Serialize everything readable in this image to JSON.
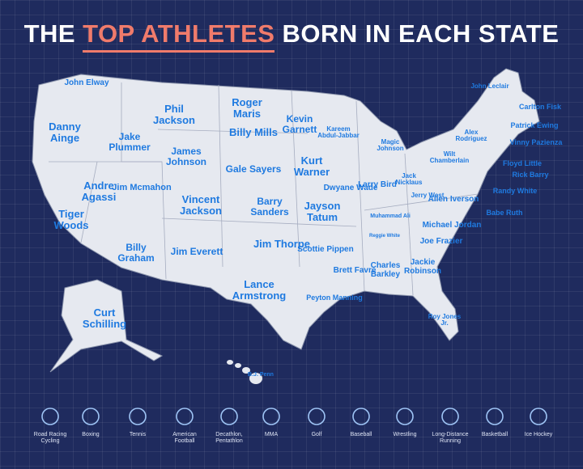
{
  "title": {
    "before": "THE",
    "highlight": "TOP ATHLETES",
    "after": "BORN IN EACH STATE"
  },
  "athletes": [
    "John Elway",
    "Phil Jackson",
    "Roger Maris",
    "Danny Ainge",
    "Jake Plummer",
    "Billy Mills",
    "Kevin Garnett",
    "Kareem Abdul-Jabbar",
    "Magic Johnson",
    "James Johnson",
    "Kurt Warner",
    "Gale Sayers",
    "Andre Agassi",
    "Jim Mcmahon",
    "Vincent Jackson",
    "Barry Sanders",
    "Jayson Tatum",
    "Dwyane Wade",
    "Larry Bird",
    "Jack Nicklaus",
    "Wilt Chamberlain",
    "Alex Rodriguez",
    "John Leclair",
    "Carlton Fisk",
    "Patrick Ewing",
    "Vinny Pazienza",
    "Floyd Little",
    "Rick Barry",
    "Randy White",
    "Babe Ruth",
    "Allen Iverson",
    "Jerry West",
    "Michael Jordan",
    "Tiger Woods",
    "Muhammad Ali",
    "Reggie White",
    "Joe Frazier",
    "Billy Graham",
    "Jim Everett",
    "Jim Thorpe",
    "Scottie Pippen",
    "Brett Favre",
    "Charles Barkley",
    "Jackie Robinson",
    "Lance Armstrong",
    "Peyton Manning",
    "Curt Schilling",
    "Roy Jones Jr.",
    "B.J. Penn"
  ],
  "legend": [
    "Road Racing Cycling",
    "Boxing",
    "Tennis",
    "American Football",
    "Decathlon, Pentathlon",
    "MMA",
    "Golf",
    "Baseball",
    "Wrestling",
    "Long-Distance Running",
    "Basketball",
    "Ice Hockey"
  ]
}
